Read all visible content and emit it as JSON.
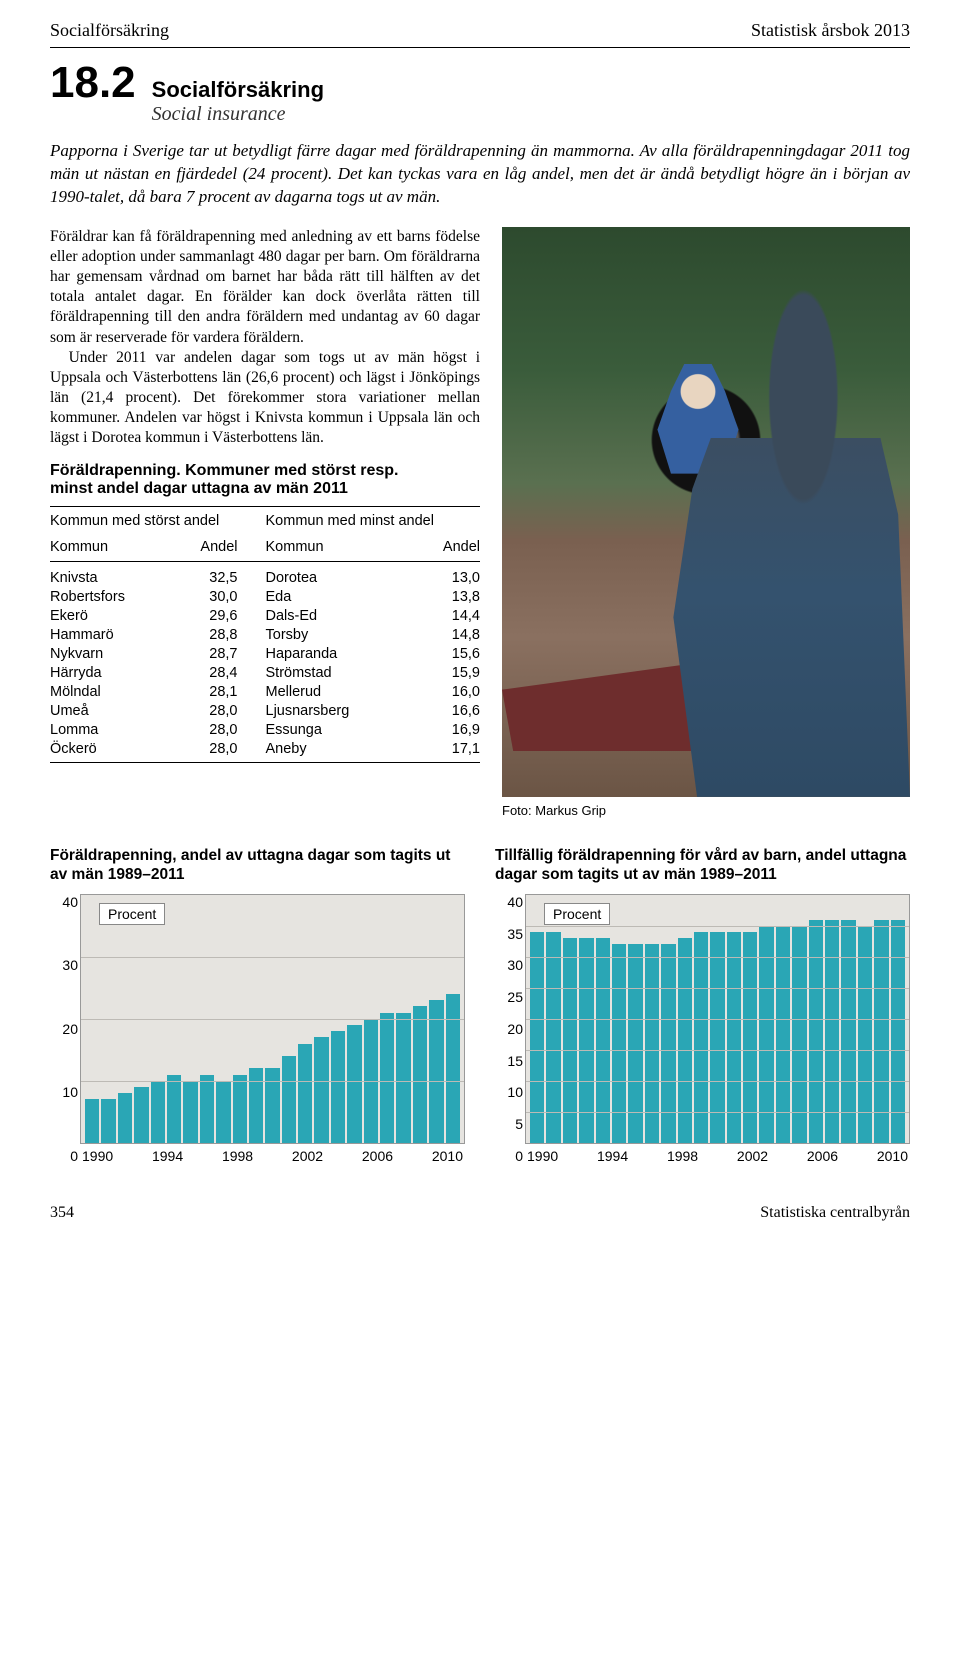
{
  "header": {
    "left": "Socialförsäkring",
    "right": "Statistisk årsbok 2013"
  },
  "section": {
    "number": "18.2",
    "title_sv": "Socialförsäkring",
    "title_en": "Social insurance"
  },
  "intro": "Papporna i Sverige tar ut betydligt färre dagar med föräldrapenning än mammorna. Av alla föräldrapenningdagar 2011 tog män ut nästan en fjärdedel (24 procent). Det kan tyckas vara en låg andel, men det är ändå betydligt högre än i början av 1990-talet, då bara 7 procent av dagarna togs ut av män.",
  "body_p1": "Föräldrar kan få föräldrapenning med anledning av ett barns födelse eller adoption under sammanlagt 480 dagar per barn. Om föräldrarna har gemensam vårdnad om barnet har båda rätt till hälften av det totala antalet dagar. En förälder kan dock överlåta rätten till föräldrapenning till den andra föräldern med undantag av 60 dagar som är reserverade för vardera föräldern.",
  "body_p2": "Under 2011 var andelen dagar som togs ut av män högst i Uppsala och Västerbottens län (26,6 procent) och lägst i Jönköpings län (21,4 procent). Det förekommer stora variationer mellan kommuner. Andelen var högst i Knivsta kommun i Uppsala län och lägst i Dorotea kommun i Västerbottens län.",
  "table": {
    "heading_l1": "Föräldrapenning. Kommuner med störst resp.",
    "heading_l2": "minst andel dagar uttagna av män 2011",
    "group_left": "Kommun med störst andel",
    "group_right": "Kommun med minst andel",
    "col_kommun": "Kommun",
    "col_andel": "Andel",
    "rows_left": [
      {
        "k": "Knivsta",
        "v": "32,5"
      },
      {
        "k": "Robertsfors",
        "v": "30,0"
      },
      {
        "k": "Ekerö",
        "v": "29,6"
      },
      {
        "k": "Hammarö",
        "v": "28,8"
      },
      {
        "k": "Nykvarn",
        "v": "28,7"
      },
      {
        "k": "Härryda",
        "v": "28,4"
      },
      {
        "k": "Mölndal",
        "v": "28,1"
      },
      {
        "k": "Umeå",
        "v": "28,0"
      },
      {
        "k": "Lomma",
        "v": "28,0"
      },
      {
        "k": "Öckerö",
        "v": "28,0"
      }
    ],
    "rows_right": [
      {
        "k": "Dorotea",
        "v": "13,0"
      },
      {
        "k": "Eda",
        "v": "13,8"
      },
      {
        "k": "Dals-Ed",
        "v": "14,4"
      },
      {
        "k": "Torsby",
        "v": "14,8"
      },
      {
        "k": "Haparanda",
        "v": "15,6"
      },
      {
        "k": "Strömstad",
        "v": "15,9"
      },
      {
        "k": "Mellerud",
        "v": "16,0"
      },
      {
        "k": "Ljusnarsberg",
        "v": "16,6"
      },
      {
        "k": "Essunga",
        "v": "16,9"
      },
      {
        "k": "Aneby",
        "v": "17,1"
      }
    ]
  },
  "photo_credit": "Foto: Markus Grip",
  "chart_left": {
    "title": "Föräldrapenning, andel av uttagna dagar som tagits ut av män 1989–2011",
    "type": "bar",
    "unit_label": "Procent",
    "ylim": [
      0,
      40
    ],
    "yticks": [
      40,
      30,
      20,
      10,
      0
    ],
    "x_ticks": [
      "1990",
      "1994",
      "1998",
      "2002",
      "2006",
      "2010"
    ],
    "years": [
      1989,
      1990,
      1991,
      1992,
      1993,
      1994,
      1995,
      1996,
      1997,
      1998,
      1999,
      2000,
      2001,
      2002,
      2003,
      2004,
      2005,
      2006,
      2007,
      2008,
      2009,
      2010,
      2011
    ],
    "values": [
      7,
      7,
      8,
      9,
      10,
      11,
      10,
      11,
      10,
      11,
      12,
      12,
      14,
      16,
      17,
      18,
      19,
      20,
      21,
      21,
      22,
      23,
      24
    ],
    "bar_color": "#2aa6b5",
    "bg_color": "#e6e4e0",
    "grid_color": "#bdbab5",
    "axis_fontsize": 14
  },
  "chart_right": {
    "title": "Tillfällig föräldrapenning för vård av barn, andel uttagna dagar som tagits ut av män 1989–2011",
    "type": "bar",
    "unit_label": "Procent",
    "ylim": [
      0,
      40
    ],
    "yticks": [
      40,
      35,
      30,
      25,
      20,
      15,
      10,
      5,
      0
    ],
    "x_ticks": [
      "1990",
      "1994",
      "1998",
      "2002",
      "2006",
      "2010"
    ],
    "years": [
      1989,
      1990,
      1991,
      1992,
      1993,
      1994,
      1995,
      1996,
      1997,
      1998,
      1999,
      2000,
      2001,
      2002,
      2003,
      2004,
      2005,
      2006,
      2007,
      2008,
      2009,
      2010,
      2011
    ],
    "values": [
      34,
      34,
      33,
      33,
      33,
      32,
      32,
      32,
      32,
      33,
      34,
      34,
      34,
      34,
      35,
      35,
      35,
      36,
      36,
      36,
      35,
      36,
      36
    ],
    "bar_color": "#2aa6b5",
    "bg_color": "#e6e4e0",
    "grid_color": "#bdbab5",
    "axis_fontsize": 14
  },
  "footer": {
    "page": "354",
    "publisher": "Statistiska centralbyrån"
  }
}
